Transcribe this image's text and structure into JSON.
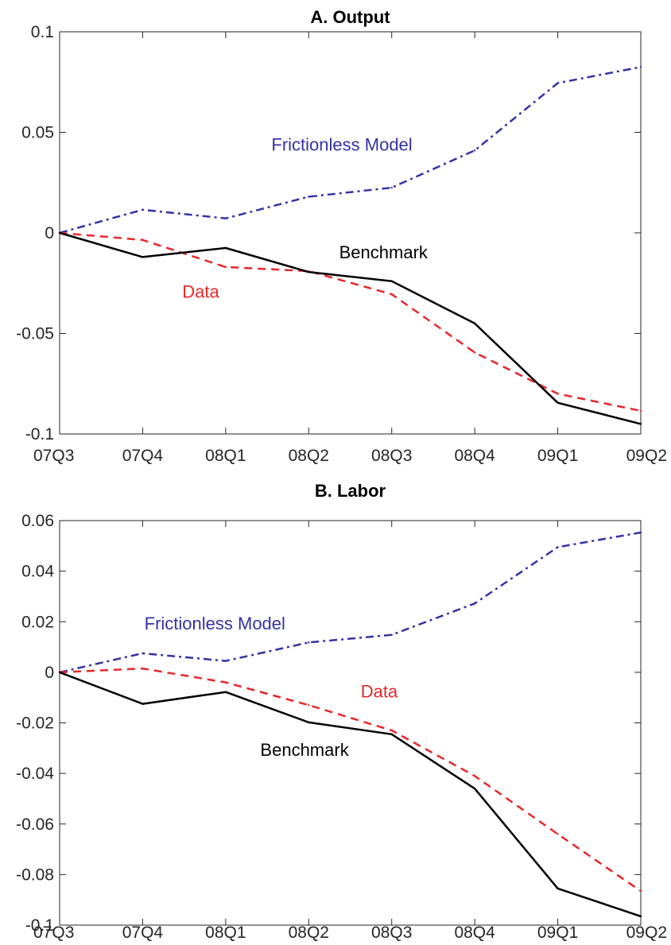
{
  "chart_data": [
    {
      "type": "line",
      "title": "A. Output",
      "xlabel": "",
      "ylabel": "",
      "categories": [
        "07Q3",
        "07Q4",
        "08Q1",
        "08Q2",
        "08Q3",
        "08Q4",
        "09Q1",
        "09Q2"
      ],
      "ylim": [
        -0.1,
        0.1
      ],
      "yticks": [
        "0.1",
        "0.05",
        "0",
        "-0.05",
        "-0.1"
      ],
      "yticks_values": [
        0.1,
        0.05,
        0,
        -0.05,
        -0.1
      ],
      "grid": false,
      "series": [
        {
          "name": "Frictionless Model",
          "color": "#3333a6",
          "style": "dashdot",
          "values": [
            0,
            0.0115,
            0.0072,
            0.018,
            0.0225,
            0.041,
            0.0745,
            0.0825
          ]
        },
        {
          "name": "Data",
          "color": "#e8262b",
          "style": "dashed",
          "values": [
            0,
            -0.0035,
            -0.017,
            -0.019,
            -0.0305,
            -0.0595,
            -0.08,
            -0.0885
          ]
        },
        {
          "name": "Benchmark",
          "color": "#000000",
          "style": "solid",
          "values": [
            0,
            -0.012,
            -0.0075,
            -0.0195,
            -0.024,
            -0.045,
            -0.0845,
            -0.095
          ]
        }
      ],
      "annotations": [
        {
          "text": "Frictionless Model",
          "color": "#3333a6",
          "x": 3.4,
          "y": 0.044
        },
        {
          "text": "Benchmark",
          "color": "#000000",
          "x": 3.9,
          "y": -0.0095
        },
        {
          "text": "Data",
          "color": "#e8262b",
          "x": 1.7,
          "y": -0.029
        }
      ]
    },
    {
      "type": "line",
      "title": "B. Labor",
      "xlabel": "",
      "ylabel": "",
      "categories": [
        "07Q3",
        "07Q4",
        "08Q1",
        "08Q2",
        "08Q3",
        "08Q4",
        "09Q1",
        "09Q2"
      ],
      "ylim": [
        -0.1,
        0.06
      ],
      "yticks": [
        "0.06",
        "0.04",
        "0.02",
        "0",
        "-0.02",
        "-0.04",
        "-0.06",
        "-0.08",
        "-0.1"
      ],
      "yticks_values": [
        0.06,
        0.04,
        0.02,
        0,
        -0.02,
        -0.04,
        -0.06,
        -0.08,
        -0.1
      ],
      "grid": false,
      "series": [
        {
          "name": "Frictionless Model",
          "color": "#3333a6",
          "style": "dashdot",
          "values": [
            0,
            0.0075,
            0.0045,
            0.0118,
            0.0148,
            0.0272,
            0.0495,
            0.0553
          ]
        },
        {
          "name": "Data",
          "color": "#e8262b",
          "style": "dashed",
          "values": [
            0,
            0.0015,
            -0.004,
            -0.013,
            -0.023,
            -0.041,
            -0.064,
            -0.0865
          ]
        },
        {
          "name": "Benchmark",
          "color": "#000000",
          "style": "solid",
          "values": [
            0,
            -0.0125,
            -0.0078,
            -0.0198,
            -0.0245,
            -0.046,
            -0.0855,
            -0.0965
          ]
        }
      ],
      "annotations": [
        {
          "text": "Frictionless Model",
          "color": "#3333a6",
          "x": 1.87,
          "y": 0.0195
        },
        {
          "text": "Data",
          "color": "#e8262b",
          "x": 3.85,
          "y": -0.0075
        },
        {
          "text": "Benchmark",
          "color": "#000000",
          "x": 2.95,
          "y": -0.0305
        }
      ]
    }
  ]
}
